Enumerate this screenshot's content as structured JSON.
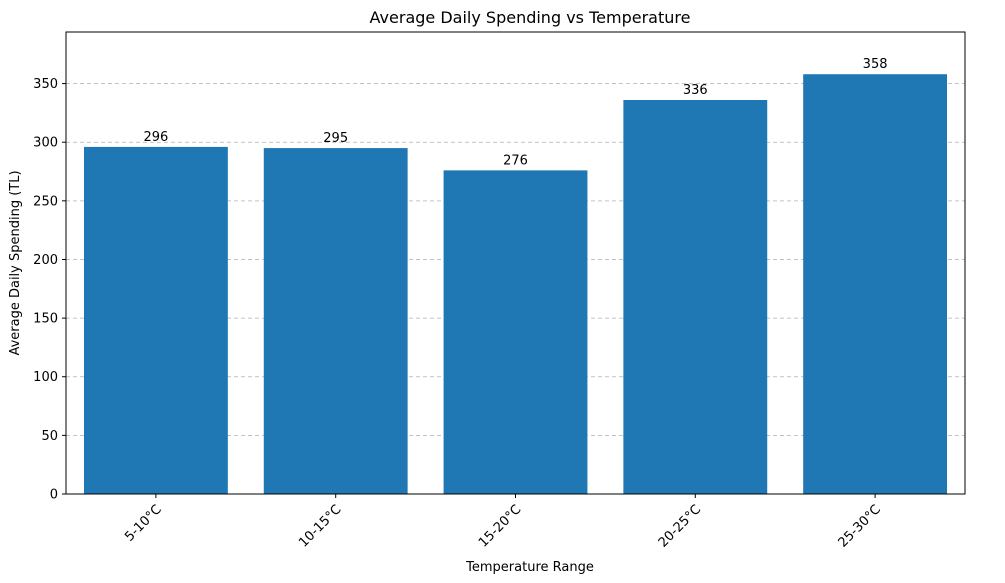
{
  "chart_data": {
    "type": "bar",
    "title": "Average Daily Spending vs Temperature",
    "xlabel": "Temperature Range",
    "ylabel": "Average Daily Spending (TL)",
    "categories": [
      "5-10°C",
      "10-15°C",
      "15-20°C",
      "20-25°C",
      "25-30°C"
    ],
    "values": [
      296,
      295,
      276,
      336,
      358
    ],
    "value_labels": [
      "296",
      "295",
      "276",
      "336",
      "358"
    ],
    "ylim": [
      0,
      394
    ],
    "yticks": [
      0,
      50,
      100,
      150,
      200,
      250,
      300,
      350
    ],
    "grid": "y-dashed",
    "xtick_rotation": 45,
    "bar_color": "#1f77b4"
  }
}
